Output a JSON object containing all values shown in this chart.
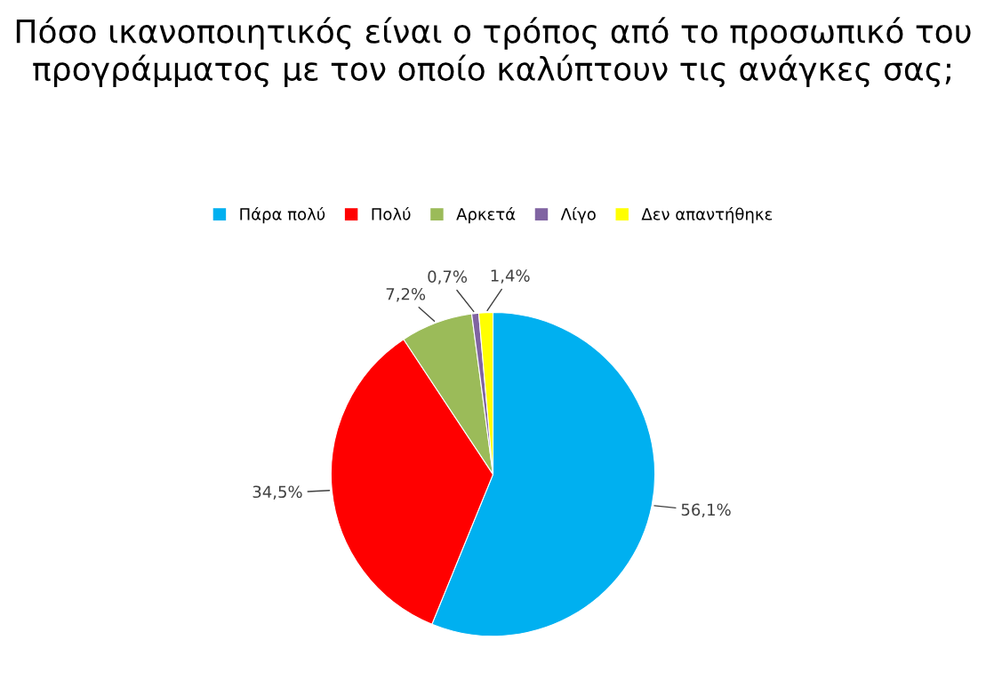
{
  "chart_data": {
    "type": "pie",
    "title": "Πόσο ικανοποιητικός είναι ο τρόπος από το προσωπικό του προγράμματος με τον οποίο καλύπτουν τις ανάγκες σας;",
    "categories": [
      "Πάρα πολύ",
      "Πολύ",
      "Αρκετά",
      "Λίγο",
      "Δεν απαντήθηκε"
    ],
    "values": [
      56.1,
      34.5,
      7.2,
      0.7,
      1.4
    ],
    "value_labels": [
      "56,1%",
      "34,5%",
      "7,2%",
      "0,7%",
      "1,4%"
    ],
    "colors": [
      "#00b0f0",
      "#ff0000",
      "#9bbb59",
      "#8064a2",
      "#ffff00"
    ],
    "legend": "top"
  }
}
